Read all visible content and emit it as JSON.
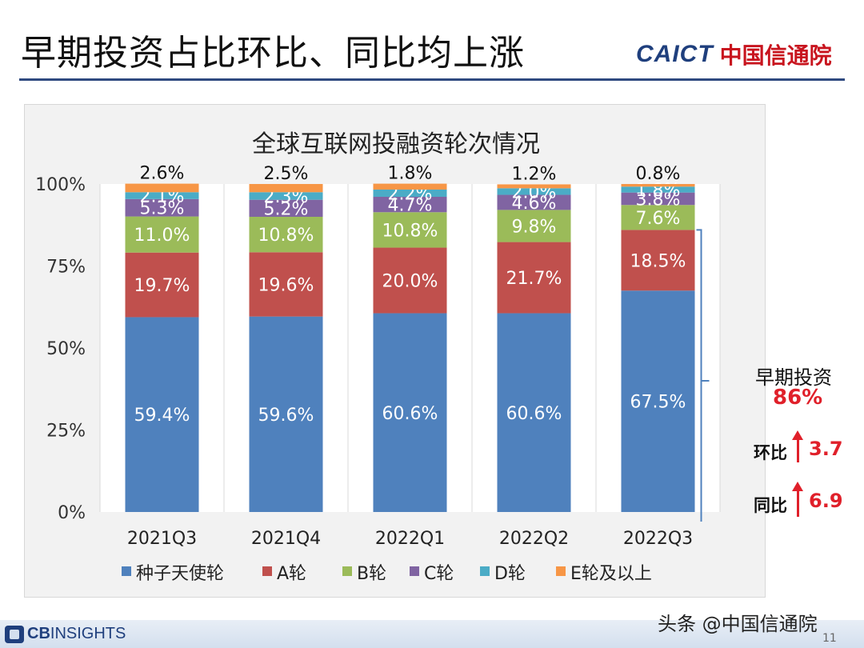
{
  "slide": {
    "title": "早期投资占比环比、同比均上涨",
    "logo_en": "CAICT",
    "logo_cn": "中国信通院",
    "footer_logo_cb": "CB",
    "footer_logo_insights": "INSIGHTS",
    "credit": "头条 @中国信通院",
    "page_number": "11"
  },
  "callout": {
    "early_label": "早期投资",
    "early_value": "86%",
    "qoq_label": "环比",
    "qoq_value": "3.7",
    "yoy_label": "同比",
    "yoy_value": "6.9"
  },
  "colors": {
    "seed": "#4f81bd",
    "a": "#c0504d",
    "b": "#9bbb59",
    "c": "#8064a2",
    "d": "#4bacc6",
    "e": "#f79646"
  },
  "chart_data": {
    "type": "bar",
    "stacked": true,
    "title": "全球互联网投融资轮次情况",
    "categories": [
      "2021Q3",
      "2021Q4",
      "2022Q1",
      "2022Q2",
      "2022Q3"
    ],
    "y_ticks": [
      "0%",
      "25%",
      "50%",
      "75%",
      "100%"
    ],
    "ylim": [
      0,
      100
    ],
    "legend_position": "bottom",
    "series": [
      {
        "name": "种子天使轮",
        "values": [
          59.4,
          59.6,
          60.6,
          60.6,
          67.5
        ],
        "labels": [
          "59.4%",
          "59.6%",
          "60.6%",
          "60.6%",
          "67.5%"
        ]
      },
      {
        "name": "A轮",
        "values": [
          19.7,
          19.6,
          20.0,
          21.7,
          18.5
        ],
        "labels": [
          "19.7%",
          "19.6%",
          "20.0%",
          "21.7%",
          "18.5%"
        ]
      },
      {
        "name": "B轮",
        "values": [
          11.0,
          10.8,
          10.8,
          9.8,
          7.6
        ],
        "labels": [
          "11.0%",
          "10.8%",
          "10.8%",
          "9.8%",
          "7.6%"
        ]
      },
      {
        "name": "C轮",
        "values": [
          5.3,
          5.2,
          4.7,
          4.6,
          3.8
        ],
        "labels": [
          "5.3%",
          "5.2%",
          "4.7%",
          "4.6%",
          "3.8%"
        ]
      },
      {
        "name": "D轮",
        "values": [
          2.1,
          2.3,
          2.2,
          2.0,
          1.8
        ],
        "labels": [
          "2.1%",
          "2.3%",
          "2.2%",
          "2.0%",
          "1.8%"
        ]
      },
      {
        "name": "E轮及以上",
        "values": [
          2.6,
          2.5,
          1.8,
          1.2,
          0.8
        ],
        "labels": [
          "2.6%",
          "2.5%",
          "1.8%",
          "1.2%",
          "0.8%"
        ]
      }
    ]
  }
}
